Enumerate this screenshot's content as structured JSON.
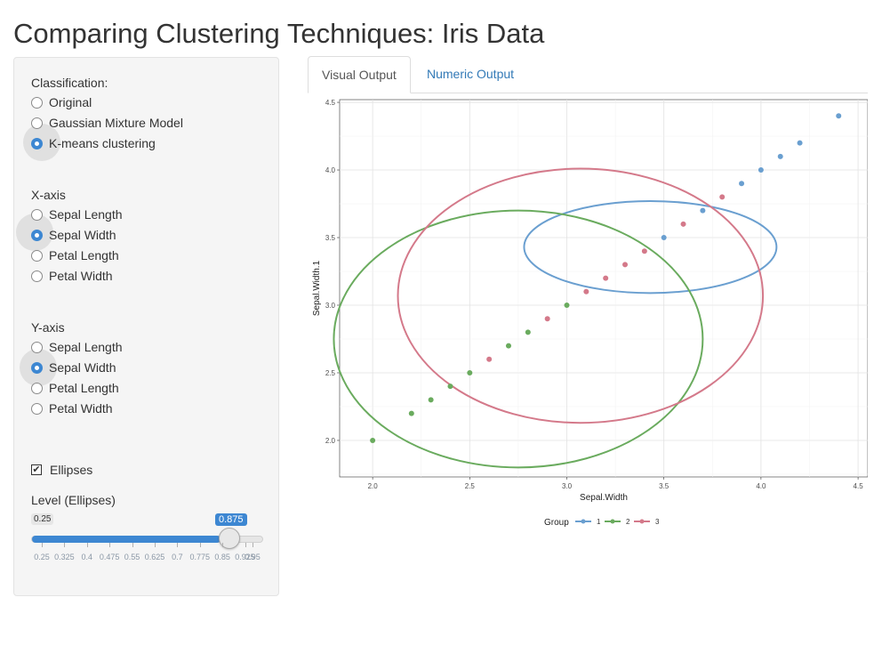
{
  "page": {
    "title": "Comparing Clustering Techniques: Iris Data"
  },
  "classification": {
    "label": "Classification:",
    "options": [
      "Original",
      "Gaussian Mixture Model",
      "K-means clustering"
    ],
    "selected": "K-means clustering"
  },
  "xaxis": {
    "label": "X-axis",
    "options": [
      "Sepal Length",
      "Sepal Width",
      "Petal Length",
      "Petal Width"
    ],
    "selected": "Sepal Width"
  },
  "yaxis": {
    "label": "Y-axis",
    "options": [
      "Sepal Length",
      "Sepal Width",
      "Petal Length",
      "Petal Width"
    ],
    "selected": "Sepal Width"
  },
  "ellipses": {
    "label": "Ellipses",
    "checked": true,
    "mark": "✔"
  },
  "level": {
    "label": "Level (Ellipses)",
    "min_label": "0.25",
    "value_label": "0.875",
    "min": 0.25,
    "max": 0.95,
    "value": 0.875,
    "ticks": [
      "0.25",
      "0.325",
      "0.4",
      "0.475",
      "0.55",
      "0.625",
      "0.7",
      "0.775",
      "0.85",
      "0.925",
      "0.95"
    ],
    "accent": "#3d87d2"
  },
  "tabs": [
    {
      "label": "Visual Output",
      "active": true
    },
    {
      "label": "Numeric Output",
      "active": false
    }
  ],
  "chart_data": {
    "type": "scatter",
    "xlabel": "Sepal.Width",
    "ylabel": "Sepal.Width.1",
    "xlim": [
      1.83,
      4.55
    ],
    "ylim": [
      1.73,
      4.52
    ],
    "xticks": [
      "2.0",
      "2.5",
      "3.0",
      "3.5",
      "4.0",
      "4.5"
    ],
    "yticks": [
      "2.0",
      "2.5",
      "3.0",
      "3.5",
      "4.0",
      "4.5"
    ],
    "grid": true,
    "legend_title": "Group",
    "legend_position": "bottom",
    "series": [
      {
        "name": "1",
        "color": "#6a9fd0",
        "x": [
          3.5,
          3.7,
          3.9,
          4.0,
          4.1,
          4.2,
          4.4
        ],
        "y": [
          3.5,
          3.7,
          3.9,
          4.0,
          4.1,
          4.2,
          4.4
        ],
        "ellipse": {
          "cx": 3.43,
          "cy": 3.43,
          "rx": 0.65,
          "ry": 0.34
        }
      },
      {
        "name": "2",
        "color": "#6aab5e",
        "x": [
          2.0,
          2.2,
          2.3,
          2.4,
          2.5,
          2.7,
          2.8,
          3.0
        ],
        "y": [
          2.0,
          2.2,
          2.3,
          2.4,
          2.5,
          2.7,
          2.8,
          3.0
        ],
        "ellipse": {
          "cx": 2.75,
          "cy": 2.75,
          "rx": 0.95,
          "ry": 0.95
        }
      },
      {
        "name": "3",
        "color": "#d4798a",
        "x": [
          2.6,
          2.9,
          3.1,
          3.2,
          3.3,
          3.4,
          3.6,
          3.8
        ],
        "y": [
          2.6,
          2.9,
          3.1,
          3.2,
          3.3,
          3.4,
          3.6,
          3.8
        ],
        "ellipse": {
          "cx": 3.07,
          "cy": 3.07,
          "rx": 0.94,
          "ry": 0.94
        }
      }
    ]
  }
}
